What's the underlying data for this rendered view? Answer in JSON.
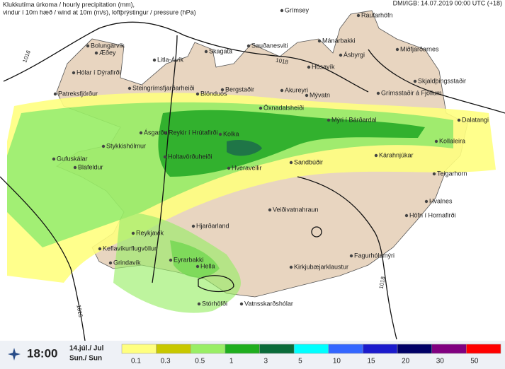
{
  "header": {
    "title_line1": "Klukkutíma úrkoma / hourly precipitation (mm),",
    "title_line2": "vindur í 10m hæð / wind at 10m (m/s), loftþrýstingur / pressure (hPa)",
    "credit": "DMI/IGB: 14.07.2019 00:00 UTC (+18)"
  },
  "places": [
    "Grímsey",
    "Raufarhöfn",
    "Bolungarvík",
    "Æðey",
    "Litla-Ávík",
    "Skagatá",
    "Sauðanesviti",
    "Mánárbakki",
    "Ásbyrgi",
    "Miðfjarðarnes",
    "Húsavík",
    "Hólar í Dýrafirði",
    "Patreksfjörður",
    "Steingrímsfjarðarheiði",
    "Blönduós",
    "Bergstaðir",
    "Akureyri",
    "Mývatn",
    "Grímsstaðir á Fjöllum",
    "Skjaldþingsstaðir",
    "Öxnadalsheiði",
    "Mýri í Bárðardal",
    "Dalatangi",
    "Reykir í Hrútafirði",
    "Ásgarður",
    "Kolka",
    "Kollaleira",
    "Stykkishólmur",
    "Holtavörðuheiði",
    "Kárahnjúkar",
    "Sandbúðir",
    "Gufuskálar",
    "Blafeldur",
    "Hveravellir",
    "Teigarhorn",
    "Veiðivatnahraun",
    "Hvalnes",
    "Höfn í Hornafirði",
    "Hjarðarland",
    "Reykjavík",
    "Keflavíkurflugvöllur",
    "Fagurhólsmýri",
    "Eyrarbakki",
    "Hella",
    "Grindavík",
    "Kirkjubæjarklaustur",
    "Stórhöfði",
    "Vatnsskarðshólar"
  ],
  "isobars": [
    "1016",
    "1018",
    "1018",
    "1016"
  ],
  "footer": {
    "time": "18:00",
    "date": "14.júl./ Jul",
    "day": "Sun./ Sun"
  },
  "legend": {
    "items": [
      {
        "label": "0.1",
        "color": "#ffff80"
      },
      {
        "label": "0.3",
        "color": "#c8c800"
      },
      {
        "label": "0.5",
        "color": "#99ee66"
      },
      {
        "label": "1",
        "color": "#1fae1f"
      },
      {
        "label": "3",
        "color": "#0a6b3a"
      },
      {
        "label": "5",
        "color": "#00ffff"
      },
      {
        "label": "10",
        "color": "#3366ff"
      },
      {
        "label": "15",
        "color": "#1a1acc"
      },
      {
        "label": "20",
        "color": "#000066"
      },
      {
        "label": "30",
        "color": "#800080"
      },
      {
        "label": "50",
        "color": "#ff0000"
      }
    ]
  }
}
